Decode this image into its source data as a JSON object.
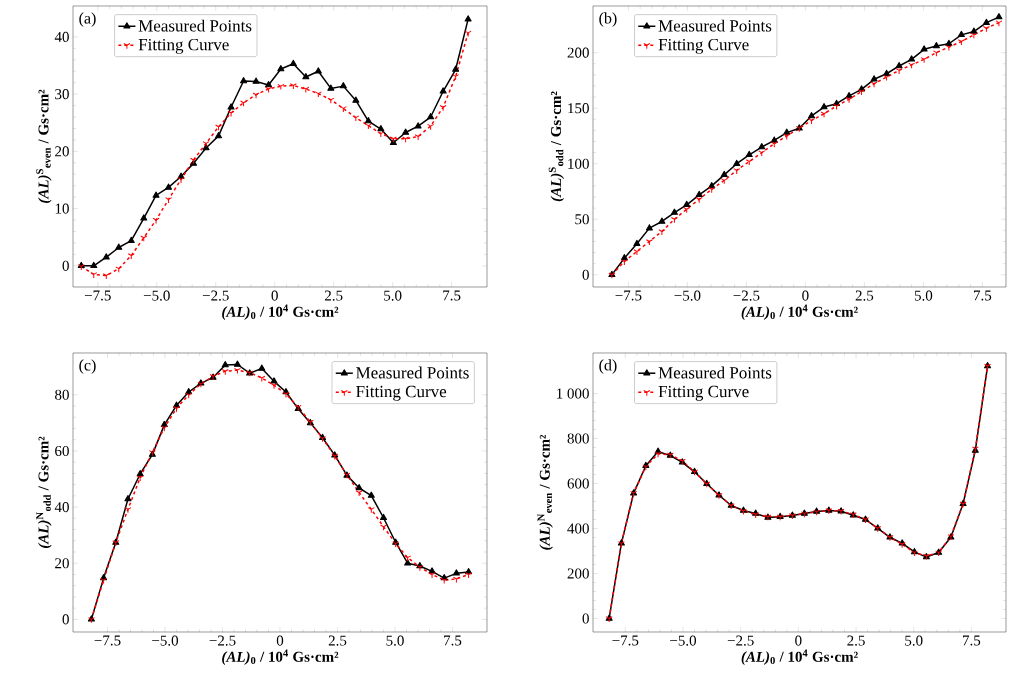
{
  "chart_data": [
    {
      "type": "line",
      "annotations": [
        "(a)"
      ],
      "xlabel": "*(AL)*$_{0}$ / 10$^{4}$ Gs·cm²",
      "ylabel": "*(AL)*$^{S}$$_{even}$ / Gs·cm²",
      "legend": "top left",
      "x": [
        -8.2,
        -7.67,
        -7.14,
        -6.61,
        -6.08,
        -5.55,
        -5.03,
        -4.5,
        -3.97,
        -3.44,
        -2.91,
        -2.38,
        -1.85,
        -1.32,
        -0.79,
        -0.26,
        0.26,
        0.79,
        1.32,
        1.85,
        2.38,
        2.91,
        3.44,
        3.97,
        4.5,
        5.03,
        5.55,
        6.08,
        6.61,
        7.14,
        7.67,
        8.2
      ],
      "xlim": [
        -8.55,
        9.0
      ],
      "ylim": [
        -3.7,
        45.4
      ],
      "xticks": [
        {
          "value": -7.5,
          "label": "−7.5"
        },
        {
          "value": -5,
          "label": "−5.0"
        },
        {
          "value": -2.5,
          "label": "−2.5"
        },
        {
          "value": 0,
          "label": "0"
        },
        {
          "value": 2.5,
          "label": "2.5"
        },
        {
          "value": 5,
          "label": "5.0"
        },
        {
          "value": 7.5,
          "label": "7.5"
        }
      ],
      "yticks": [
        0,
        10,
        20,
        30,
        40
      ],
      "series": [
        {
          "name": "Measured Points",
          "color": "#000000",
          "marker": "triangle",
          "line_style": "solid",
          "values": [
            0,
            0,
            1.5,
            3.2,
            4.4,
            8.3,
            12.3,
            13.7,
            15.6,
            17.9,
            20.6,
            22.7,
            27.7,
            32.3,
            32.2,
            31.6,
            34.4,
            35.3,
            33.0,
            34.0,
            31.0,
            31.4,
            28.9,
            25.3,
            23.9,
            21.5,
            23.3,
            24.4,
            26.0,
            30.5,
            34.3,
            43.1
          ]
        },
        {
          "name": "Fitting Curve",
          "color": "#ff0000",
          "marker": "cross",
          "line_style": "dashed",
          "values": [
            -0.1,
            -1.5,
            -1.7,
            -0.5,
            1.8,
            4.9,
            8.0,
            11.6,
            15.1,
            18.5,
            21.4,
            24.3,
            26.7,
            28.5,
            29.9,
            30.9,
            31.4,
            31.5,
            30.9,
            30.1,
            29.0,
            27.5,
            25.9,
            24.5,
            23.1,
            22.2,
            22.2,
            22.6,
            24.4,
            27.7,
            33.1,
            40.7
          ]
        }
      ]
    },
    {
      "type": "line",
      "annotations": [
        "(b)"
      ],
      "xlabel": "*(AL)*$_{0}$ / 10$^{4}$ Gs·cm²",
      "ylabel": "*(AL)*$^{S}$$_{odd}$ / Gs·cm²",
      "legend": "top left",
      "x": [
        -8.2,
        -7.67,
        -7.14,
        -6.61,
        -6.08,
        -5.55,
        -5.03,
        -4.5,
        -3.97,
        -3.44,
        -2.91,
        -2.38,
        -1.85,
        -1.32,
        -0.79,
        -0.26,
        0.26,
        0.79,
        1.32,
        1.85,
        2.38,
        2.91,
        3.44,
        3.97,
        4.5,
        5.03,
        5.55,
        6.08,
        6.61,
        7.14,
        7.67,
        8.2
      ],
      "xlim": [
        -9.0,
        8.5
      ],
      "ylim": [
        -11,
        242
      ],
      "xticks": [
        {
          "value": -7.5,
          "label": "−7.5"
        },
        {
          "value": -5,
          "label": "−5.0"
        },
        {
          "value": -2.5,
          "label": "−2.5"
        },
        {
          "value": 0,
          "label": "0"
        },
        {
          "value": 2.5,
          "label": "2.5"
        },
        {
          "value": 5,
          "label": "5.0"
        },
        {
          "value": 7.5,
          "label": "7.5"
        }
      ],
      "yticks": [
        0,
        50,
        100,
        150,
        200
      ],
      "series": [
        {
          "name": "Measured Points",
          "color": "#000000",
          "marker": "triangle",
          "line_style": "solid",
          "values": [
            0,
            15,
            28,
            42,
            48,
            56,
            63,
            72,
            80,
            90,
            100,
            108,
            115,
            121,
            128,
            132,
            143,
            151,
            154,
            161,
            167,
            176,
            181,
            188,
            194,
            203,
            206,
            208,
            216,
            219,
            227,
            232
          ]
        },
        {
          "name": "Fitting Curve",
          "color": "#ff0000",
          "marker": "cross",
          "line_style": "dashed",
          "values": [
            0,
            12,
            21,
            30,
            39,
            50,
            59,
            68,
            77,
            85,
            94,
            102,
            110,
            118,
            125,
            132,
            139,
            145,
            152,
            158,
            165,
            172,
            178,
            184,
            189,
            194,
            200,
            205,
            210,
            216,
            222,
            227
          ]
        }
      ]
    },
    {
      "type": "line",
      "annotations": [
        "(c)"
      ],
      "xlabel": "*(AL)*$_{0}$ / 10$^{4}$ Gs·cm²",
      "ylabel": "*(AL)*$^{N}$$_{odd}$ / Gs·cm²",
      "legend": "top right",
      "x": [
        -8.2,
        -7.67,
        -7.14,
        -6.61,
        -6.08,
        -5.55,
        -5.03,
        -4.5,
        -3.97,
        -3.44,
        -2.91,
        -2.38,
        -1.85,
        -1.32,
        -0.79,
        -0.26,
        0.26,
        0.79,
        1.32,
        1.85,
        2.38,
        2.91,
        3.44,
        3.97,
        4.5,
        5.03,
        5.55,
        6.08,
        6.61,
        7.14,
        7.67,
        8.2
      ],
      "xlim": [
        -9.0,
        9.0
      ],
      "ylim": [
        -4.5,
        94.9
      ],
      "xticks": [
        {
          "value": -7.5,
          "label": "−7.5"
        },
        {
          "value": -5,
          "label": "−5.0"
        },
        {
          "value": -2.5,
          "label": "−2.5"
        },
        {
          "value": 0,
          "label": "0"
        },
        {
          "value": 2.5,
          "label": "2.5"
        },
        {
          "value": 5,
          "label": "5.0"
        },
        {
          "value": 7.5,
          "label": "7.5"
        }
      ],
      "yticks": [
        0,
        20,
        40,
        60,
        80
      ],
      "series": [
        {
          "name": "Measured Points",
          "color": "#000000",
          "marker": "triangle",
          "line_style": "solid",
          "values": [
            0,
            14.7,
            27.4,
            42.9,
            51.8,
            58.7,
            69.3,
            76.2,
            81.0,
            84.1,
            86.2,
            90.6,
            90.8,
            87.7,
            89.4,
            84.8,
            81.0,
            75.0,
            70.0,
            64.7,
            58.5,
            51.3,
            46.8,
            44.1,
            36.2,
            27.4,
            20.0,
            19.0,
            17.1,
            14.7,
            16.4,
            16.9
          ]
        },
        {
          "name": "Fitting Curve",
          "color": "#ff0000",
          "marker": "cross",
          "line_style": "dashed",
          "values": [
            0,
            14.0,
            27.4,
            39.2,
            50.5,
            59.5,
            68.3,
            75.2,
            80.0,
            83.9,
            86.6,
            88.4,
            88.8,
            87.9,
            86.0,
            83.4,
            80.3,
            75.6,
            70.3,
            64.5,
            58.2,
            51.5,
            45.2,
            39.2,
            33.0,
            27.0,
            22.0,
            18.6,
            16.0,
            14.0,
            14.4,
            16.0
          ]
        }
      ]
    },
    {
      "type": "line",
      "annotations": [
        "(d)"
      ],
      "xlabel": "*(AL)*$_{0}$ / 10$^{4}$ Gs·cm²",
      "ylabel": "*(AL)*$^{N}$$_{even}$ / Gs·cm²",
      "legend": "top left",
      "x": [
        -8.2,
        -7.67,
        -7.14,
        -6.61,
        -6.08,
        -5.55,
        -5.03,
        -4.5,
        -3.97,
        -3.44,
        -2.91,
        -2.38,
        -1.85,
        -1.32,
        -0.79,
        -0.26,
        0.26,
        0.79,
        1.32,
        1.85,
        2.38,
        2.91,
        3.44,
        3.97,
        4.5,
        5.03,
        5.55,
        6.08,
        6.61,
        7.14,
        7.67,
        8.2
      ],
      "xlim": [
        -8.9,
        9.0
      ],
      "ylim": [
        -60,
        1180
      ],
      "xticks": [
        {
          "value": -7.5,
          "label": "−7.5"
        },
        {
          "value": -5,
          "label": "−5.0"
        },
        {
          "value": -2.5,
          "label": "−2.5"
        },
        {
          "value": 0,
          "label": "0"
        },
        {
          "value": 2.5,
          "label": "2.5"
        },
        {
          "value": 5,
          "label": "5.0"
        },
        {
          "value": 7.5,
          "label": "7.5"
        }
      ],
      "yticks": [
        0,
        200,
        400,
        600,
        800,
        {
          "value": 1000,
          "label": "1 000"
        }
      ],
      "series": [
        {
          "name": "Measured Points",
          "color": "#000000",
          "marker": "triangle",
          "line_style": "solid",
          "values": [
            0,
            334,
            557,
            679,
            742,
            724,
            694,
            652,
            599,
            548,
            502,
            480,
            467,
            449,
            452,
            458,
            467,
            476,
            480,
            477,
            459,
            440,
            401,
            361,
            334,
            296,
            273,
            293,
            361,
            510,
            747,
            1122
          ]
        },
        {
          "name": "Fitting Curve",
          "color": "#ff0000",
          "marker": "cross",
          "line_style": "dashed",
          "values": [
            0,
            334,
            557,
            675,
            732,
            728,
            700,
            652,
            599,
            548,
            502,
            478,
            462,
            452,
            452,
            458,
            466,
            474,
            480,
            478,
            462,
            440,
            401,
            361,
            330,
            293,
            278,
            293,
            365,
            510,
            755,
            1122
          ]
        }
      ]
    }
  ]
}
